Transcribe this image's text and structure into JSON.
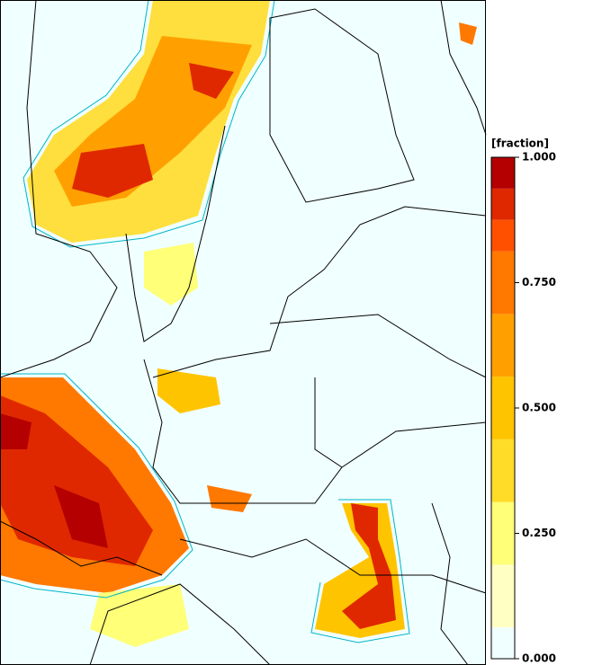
{
  "colorbar": {
    "title": "[fraction]",
    "range": [
      0,
      1
    ],
    "ticks": [
      {
        "value": 0,
        "label": "0.000"
      },
      {
        "value": 0.25,
        "label": "0.250"
      },
      {
        "value": 0.5,
        "label": "0.500"
      },
      {
        "value": 0.75,
        "label": "0.750"
      },
      {
        "value": 1,
        "label": "1.000"
      }
    ],
    "levels": [
      0,
      0.0625,
      0.1875,
      0.3125,
      0.4375,
      0.5625,
      0.6875,
      0.8125,
      0.875,
      0.9375,
      1
    ],
    "colors": [
      "#f0ffff",
      "#ffffc4",
      "#ffff78",
      "#ffdc28",
      "#ffc400",
      "#ffa000",
      "#ff7800",
      "#ff5000",
      "#e02800",
      "#b40000"
    ]
  }
}
